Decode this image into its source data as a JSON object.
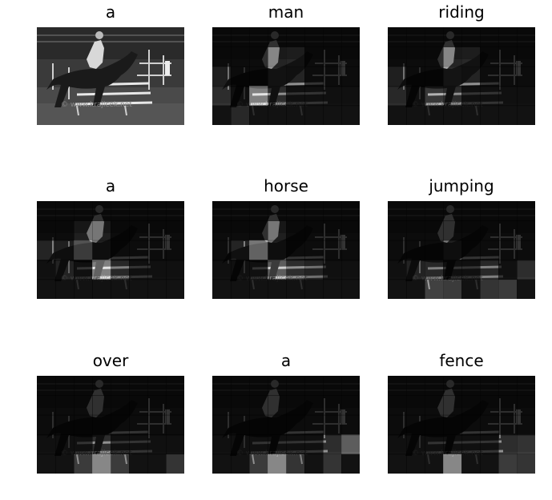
{
  "watermark": "© www.krajicek.net",
  "panels": [
    {
      "word": "a",
      "attention": "full"
    },
    {
      "word": "man",
      "attention": "man"
    },
    {
      "word": "riding",
      "attention": "riding"
    },
    {
      "word": "a",
      "attention": "a2"
    },
    {
      "word": "horse",
      "attention": "horse"
    },
    {
      "word": "jumping",
      "attention": "jumping"
    },
    {
      "word": "over",
      "attention": "over"
    },
    {
      "word": "a",
      "attention": "a3"
    },
    {
      "word": "fence",
      "attention": "fence"
    }
  ]
}
